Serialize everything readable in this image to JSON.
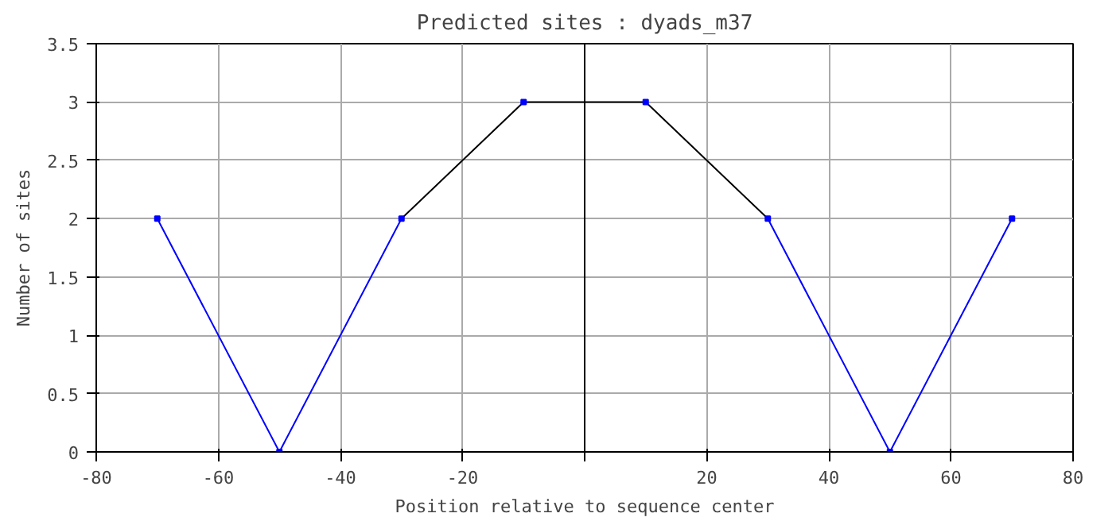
{
  "chart_data": {
    "type": "line",
    "title": "Predicted sites : dyads_m37",
    "xlabel": "Position relative to sequence center",
    "ylabel": "Number of sites",
    "series": [
      {
        "color": "#0000ff",
        "x": [
          -70,
          -50,
          -30
        ],
        "values": [
          2,
          0,
          2
        ]
      },
      {
        "color": "#000000",
        "x": [
          -30,
          -10,
          10,
          30
        ],
        "values": [
          2,
          3,
          3,
          2
        ]
      },
      {
        "color": "#0000ff",
        "x": [
          30,
          50,
          70
        ],
        "values": [
          2,
          0,
          2
        ]
      },
      {
        "type": "scatter",
        "marker": "square",
        "color": "#0000ff",
        "x": [
          -70,
          -50,
          -30,
          -10,
          10,
          30,
          50,
          70
        ],
        "values": [
          2,
          0,
          2,
          3,
          3,
          2,
          0,
          2
        ]
      }
    ],
    "xlim": [
      -80,
      80
    ],
    "xticks": [
      -80,
      -60,
      -40,
      -20,
      {
        "value": 0,
        "label": null
      },
      20,
      40,
      60,
      80
    ],
    "ylim": [
      0,
      3.5
    ],
    "yticks": [
      0,
      0.5,
      1,
      1.5,
      2,
      2.5,
      3,
      3.5
    ],
    "ref_lines": [
      {
        "axis": "x",
        "value": 0,
        "color": "#000000"
      }
    ],
    "grid": true
  }
}
